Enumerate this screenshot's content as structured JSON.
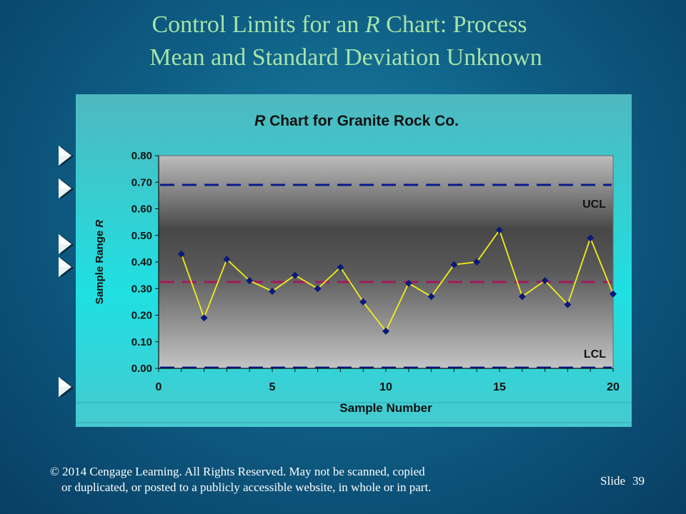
{
  "slide": {
    "title_line1_pre": "Control Limits for an ",
    "title_line1_em": "R",
    "title_line1_post": " Chart:  Process",
    "title_line2": "Mean and Standard Deviation Unknown",
    "copyright_line1": "© 2014  Cengage Learning.  All Rights Reserved.  May not be scanned, copied",
    "copyright_line2": "or duplicated, or posted to a publicly accessible website, in whole or in part.",
    "slide_label": "Slide",
    "slide_number": "39",
    "bullet_count": 5
  },
  "chart_data": {
    "type": "line",
    "title_italic": "R",
    "title": " Chart for Granite Rock Co.",
    "xlabel": "Sample Number",
    "ylabel_prefix": "Sample Range ",
    "ylabel_italic": "R",
    "xlim": [
      0,
      20
    ],
    "ylim": [
      0,
      0.8
    ],
    "x_ticks": [
      0,
      5,
      10,
      15,
      20
    ],
    "y_ticks": [
      "0.00",
      "0.10",
      "0.20",
      "0.30",
      "0.40",
      "0.50",
      "0.60",
      "0.70",
      "0.80"
    ],
    "series": [
      {
        "x": [
          1,
          2,
          3,
          4,
          5,
          6,
          7,
          8,
          9,
          10,
          11,
          12,
          13,
          14,
          15,
          16,
          17,
          18,
          19,
          20
        ],
        "values": [
          0.43,
          0.19,
          0.41,
          0.33,
          0.29,
          0.35,
          0.3,
          0.38,
          0.25,
          0.14,
          0.32,
          0.27,
          0.39,
          0.4,
          0.52,
          0.27,
          0.33,
          0.24,
          0.49,
          0.28
        ],
        "color": "#f2ee18",
        "marker_color": "#0a1a7a"
      }
    ],
    "reference_lines": [
      {
        "label": "UCL",
        "value": 0.69,
        "color": "#0a1a8a"
      },
      {
        "label": "",
        "value": 0.325,
        "color": "#a3195b"
      },
      {
        "label": "LCL",
        "value": 0.0,
        "color": "#0a1a8a"
      }
    ],
    "grid": false
  }
}
